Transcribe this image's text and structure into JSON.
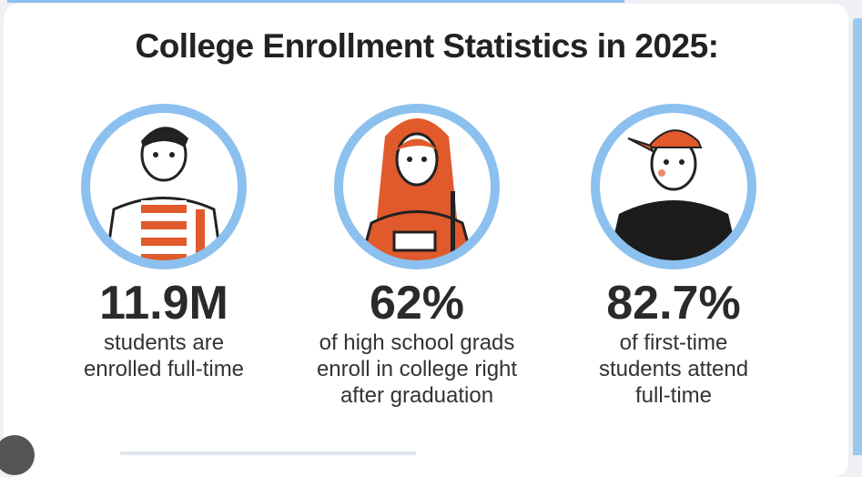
{
  "title": "College Enrollment Statistics in 2025:",
  "colors": {
    "ring": "#8cc0ee",
    "accent": "#e05a2b",
    "text": "#2a2a2a"
  },
  "stats": [
    {
      "value": "11.9M",
      "lines": [
        "students are",
        "enrolled full-time"
      ],
      "icon": "bearded-man-illustration"
    },
    {
      "value": "62%",
      "lines": [
        "of high school grads",
        "enroll in college right",
        "after graduation"
      ],
      "icon": "woman-with-books-illustration"
    },
    {
      "value": "82.7%",
      "lines": [
        "of first-time",
        "students attend",
        "full-time"
      ],
      "icon": "man-in-cap-hoodie-illustration"
    }
  ]
}
